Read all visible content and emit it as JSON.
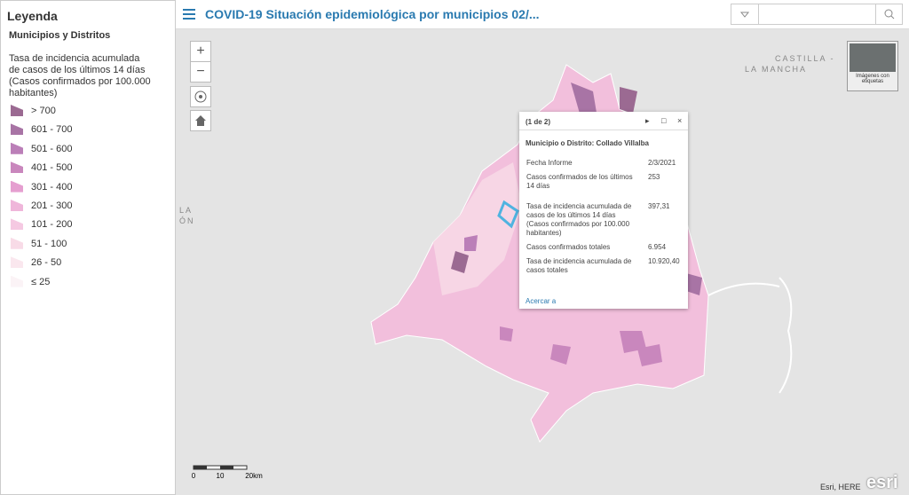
{
  "legend": {
    "title": "Leyenda",
    "layer": "Municipios y Distritos",
    "field": "Tasa de incidencia acumulada de casos de los últimos 14 días (Casos confirmados por 100.000 habitantes)",
    "items": [
      {
        "label": "> 700",
        "color": "#9b6a92"
      },
      {
        "label": "601 - 700",
        "color": "#a874a5"
      },
      {
        "label": "501 - 600",
        "color": "#bb7fb8"
      },
      {
        "label": "401 - 500",
        "color": "#c987bd"
      },
      {
        "label": "301 - 400",
        "color": "#e59fd0"
      },
      {
        "label": "201 - 300",
        "color": "#efb6da"
      },
      {
        "label": "101 - 200",
        "color": "#f5c9e2"
      },
      {
        "label": "51 - 100",
        "color": "#f8dbe7"
      },
      {
        "label": "26 - 50",
        "color": "#fae7ee"
      },
      {
        "label": "≤ 25",
        "color": "#fbf3f6"
      }
    ]
  },
  "header": {
    "title": "COVID-19 Situación epidemiológica por municipios 02/..."
  },
  "map": {
    "zoom_in": "+",
    "zoom_out": "−",
    "labels": [
      "CASTILLA -",
      "LA MANCHA",
      "LA",
      "ÓN"
    ],
    "basemap": "Imágenes con etiquetas",
    "scale": [
      "0",
      "10",
      "20km"
    ],
    "attribution": "Esri, HERE",
    "logo": "esri"
  },
  "popup": {
    "counter": "(1 de 2)",
    "title": "Municipio o Distrito: Collado Villalba",
    "rows": [
      [
        "Fecha Informe",
        "2/3/2021"
      ],
      [
        "Casos confirmados de los últimos 14 días",
        "253"
      ],
      [
        "Tasa de incidencia acumulada de casos de los últimos 14 días (Casos confirmados por 100.000 habitantes)",
        "397,31"
      ],
      [
        "Casos confirmados totales",
        "6.954"
      ],
      [
        "Tasa de incidencia acumulada de casos totales",
        "10.920,40"
      ]
    ],
    "zoom": "Acercar a"
  }
}
